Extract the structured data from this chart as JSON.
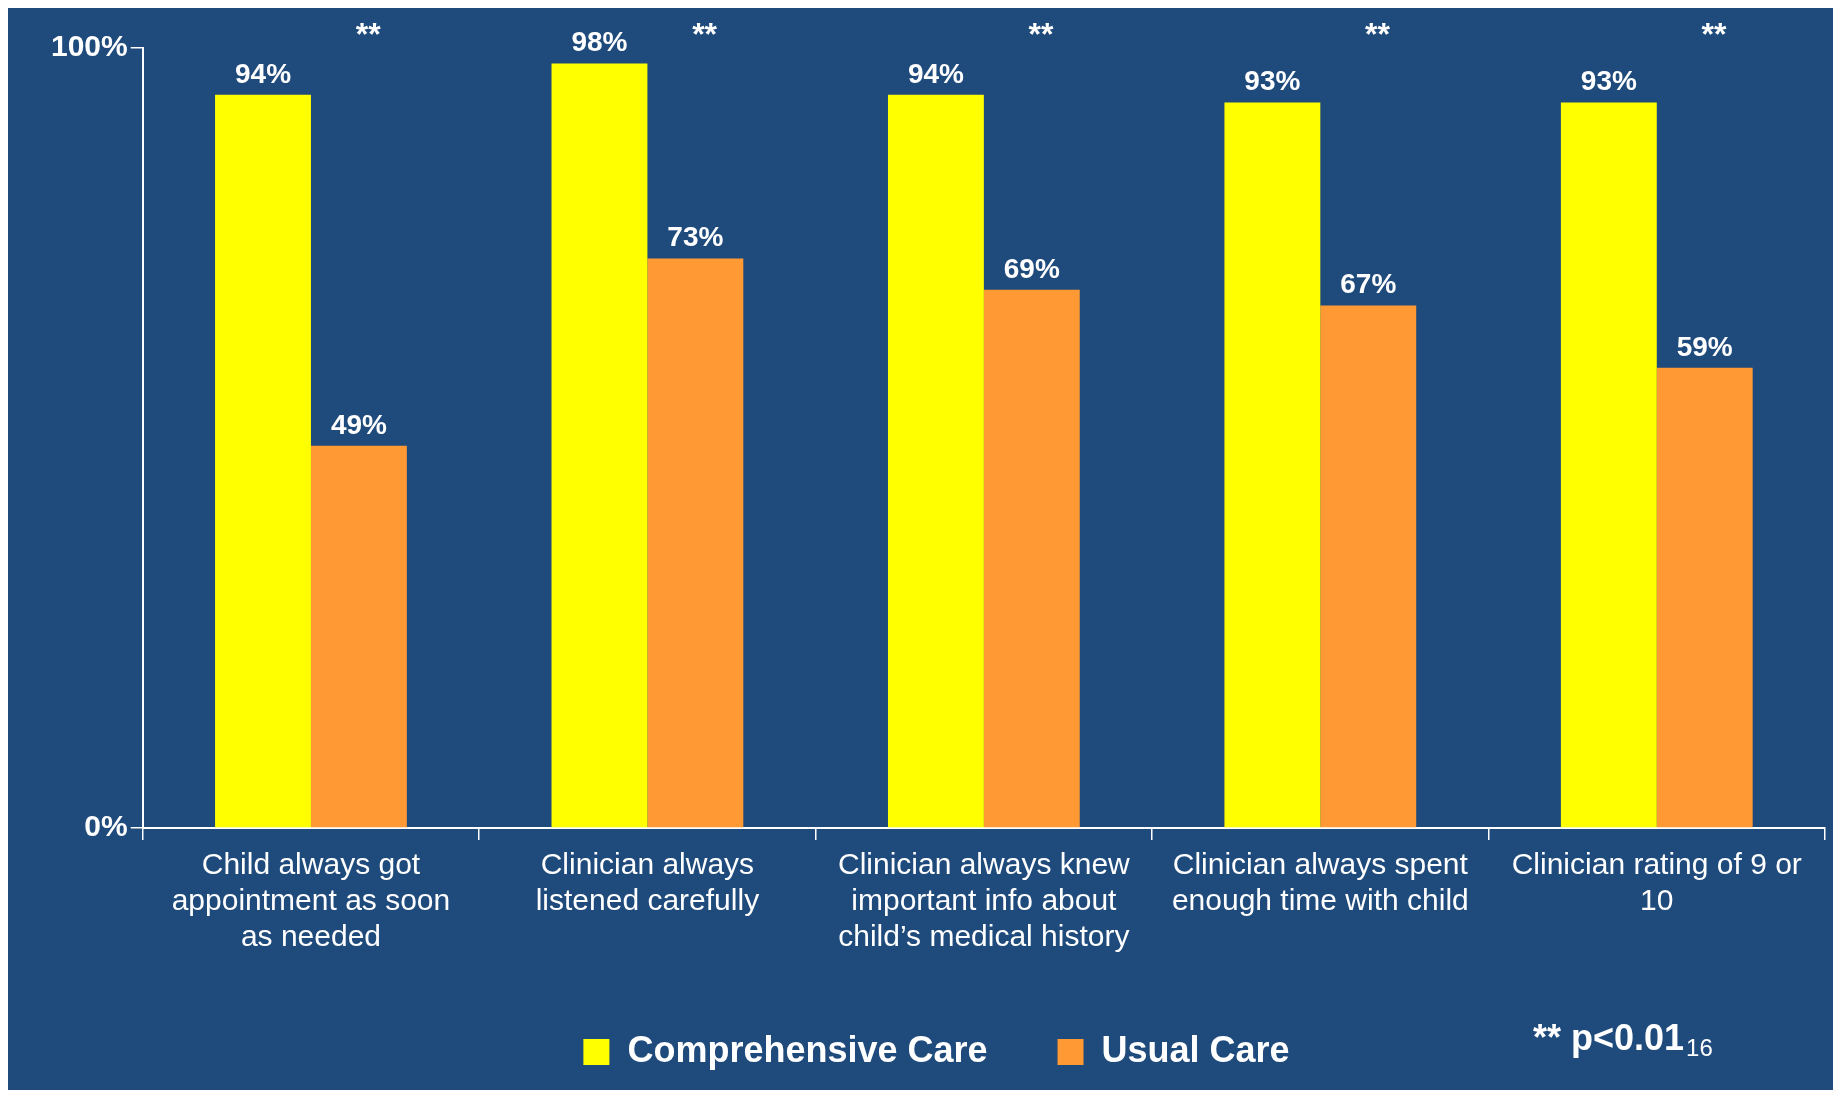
{
  "chart_data": {
    "type": "bar",
    "categories": [
      "Child always got appointment as soon as needed",
      "Clinician always listened carefully",
      "Clinician always knew important info about child’s medical history",
      "Clinician always spent enough time with child",
      "Clinician rating of 9 or 10"
    ],
    "series": [
      {
        "name": "Comprehensive Care",
        "color": "#ffff00",
        "values": [
          94,
          98,
          94,
          93,
          93
        ],
        "value_labels": [
          "94%",
          "98%",
          "94%",
          "93%",
          "93%"
        ]
      },
      {
        "name": "Usual Care",
        "color": "#ff9933",
        "values": [
          49,
          73,
          69,
          67,
          59
        ],
        "value_labels": [
          "49%",
          "73%",
          "69%",
          "67%",
          "59%"
        ]
      }
    ],
    "ylim": [
      0,
      100
    ],
    "yticks": [
      {
        "value": 0,
        "label": "0%"
      },
      {
        "value": 100,
        "label": "100%"
      }
    ],
    "legend": "bottom",
    "grid": false,
    "annotations": [
      "**",
      "**",
      "**",
      "**",
      "**",
      "** p<0.01",
      "16"
    ]
  }
}
